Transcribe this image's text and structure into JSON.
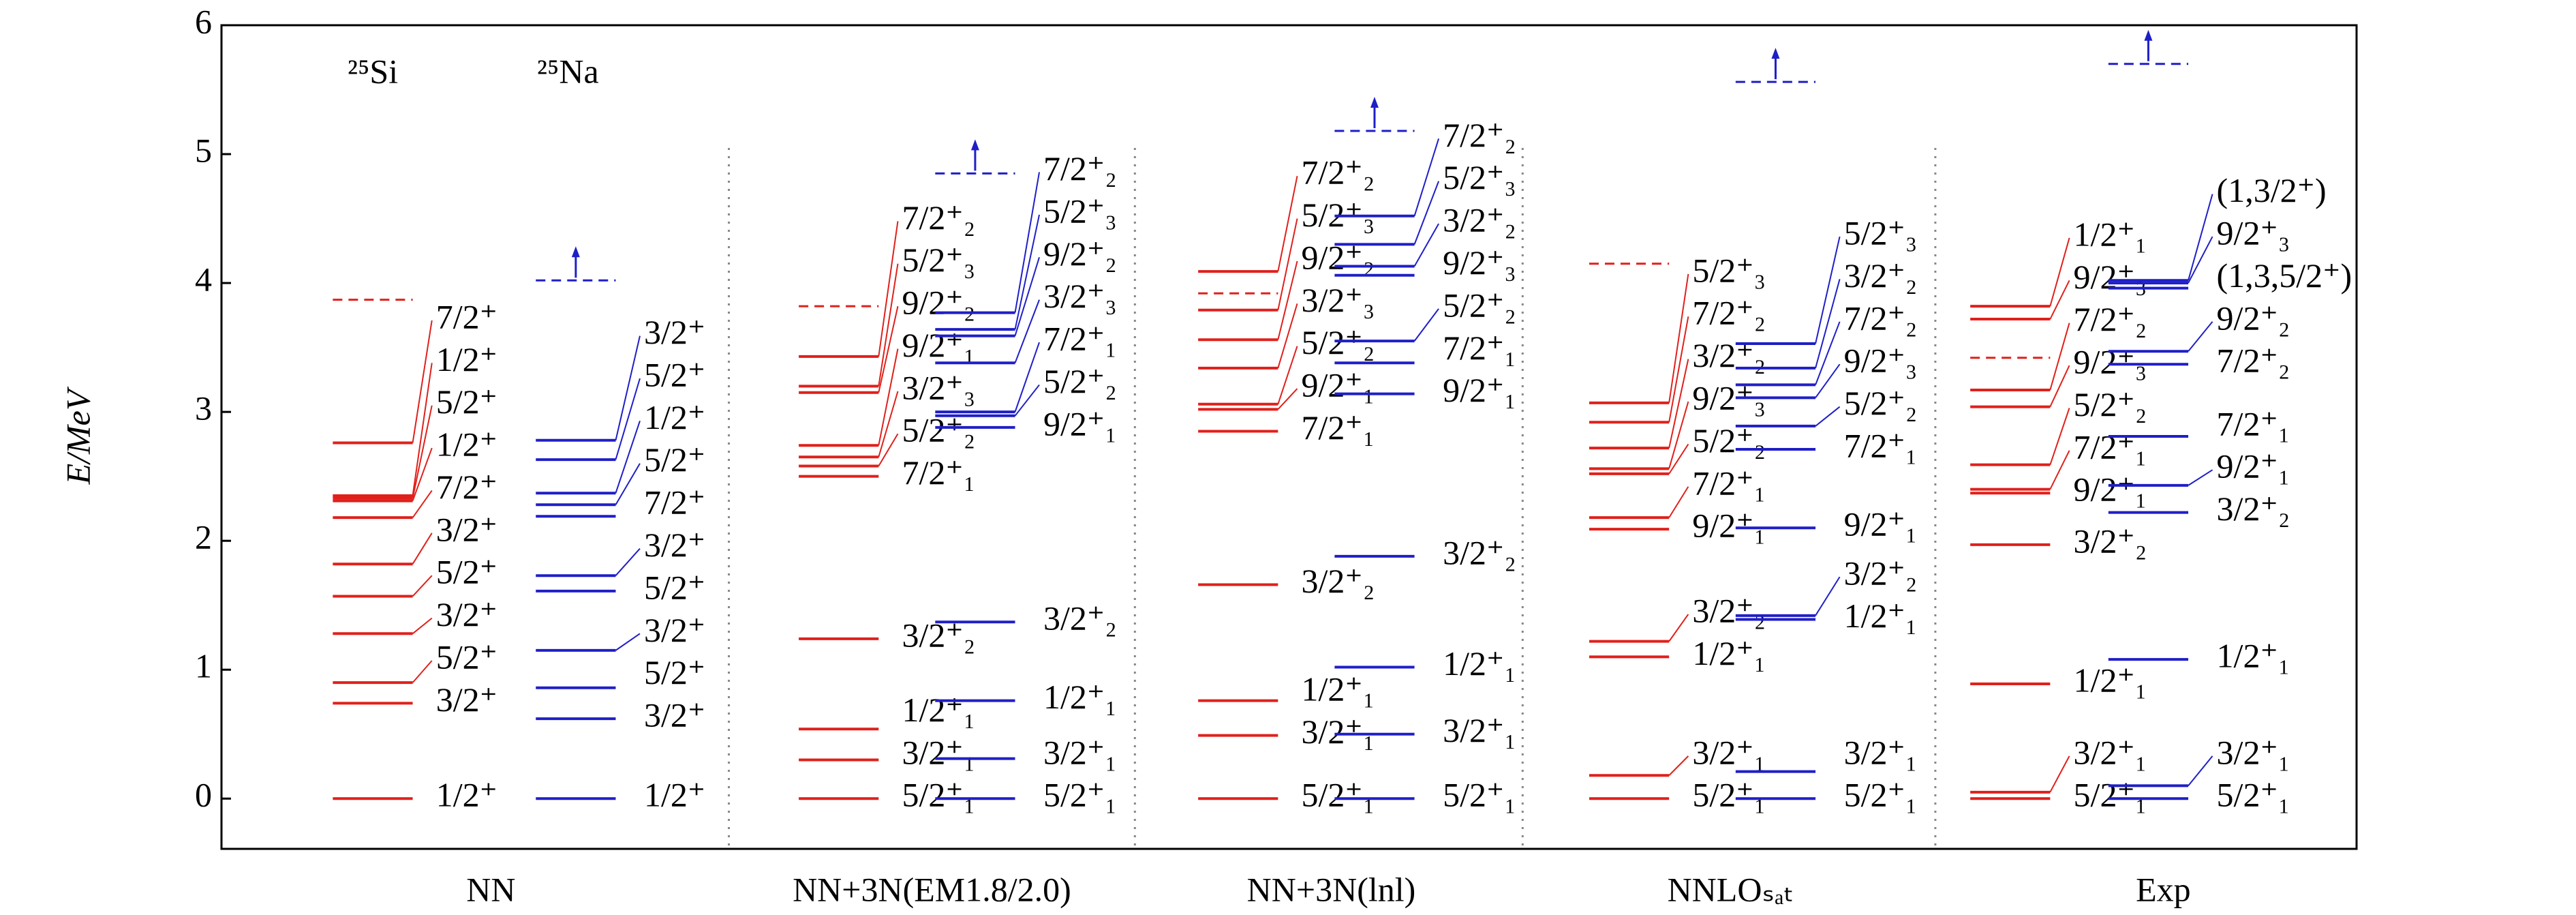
{
  "chart_data": {
    "type": "level",
    "ylabel": "E/MeV",
    "ylim": [
      -0.39,
      6
    ],
    "yticks": [
      0,
      1,
      2,
      3,
      4,
      5,
      6
    ],
    "species": [
      "²⁵Si",
      "²⁵Na"
    ],
    "groups": [
      {
        "name": "NN",
        "columns": [
          {
            "color": "#e0201b",
            "threshold": 3.87,
            "arrow": false,
            "levels": [
              0,
              0.74,
              0.9,
              1.28,
              1.57,
              1.82,
              2.18,
              2.31,
              2.33,
              2.35,
              2.76
            ],
            "labels": [
              "1/2⁺",
              "3/2⁺",
              "5/2⁺",
              "3/2⁺",
              "5/2⁺",
              "3/2⁺",
              "7/2⁺",
              "1/2⁺",
              "5/2⁺",
              "1/2⁺",
              "7/2⁺"
            ]
          },
          {
            "color": "#1f1fc8",
            "threshold": 4.02,
            "arrow": true,
            "levels": [
              0,
              0.62,
              0.86,
              1.15,
              1.61,
              1.73,
              2.19,
              2.28,
              2.37,
              2.63,
              2.78
            ],
            "labels": [
              "1/2⁺",
              "3/2⁺",
              "5/2⁺",
              "3/2⁺",
              "5/2⁺",
              "3/2⁺",
              "7/2⁺",
              "5/2⁺",
              "1/2⁺",
              "5/2⁺",
              "3/2⁺"
            ]
          }
        ]
      },
      {
        "name": "NN+3N(EM1.8/2.0)",
        "columns": [
          {
            "color": "#e0201b",
            "threshold": 3.82,
            "arrow": false,
            "levels": [
              0,
              0.3,
              0.54,
              1.24,
              2.5,
              2.58,
              2.65,
              2.74,
              3.15,
              3.2,
              3.43
            ],
            "labels": [
              "5/2⁺₁",
              "3/2⁺₁",
              "1/2⁺₁",
              "3/2⁺₂",
              "7/2⁺₁",
              "5/2⁺₂",
              "3/2⁺₃",
              "9/2⁺₁",
              "9/2⁺₂",
              "5/2⁺₃",
              "7/2⁺₂"
            ]
          },
          {
            "color": "#1f1fc8",
            "threshold": 4.85,
            "arrow": true,
            "levels": [
              0,
              0.31,
              0.76,
              1.37,
              2.88,
              2.97,
              3.0,
              3.38,
              3.59,
              3.64,
              3.77
            ],
            "labels": [
              "5/2⁺₁",
              "3/2⁺₁",
              "1/2⁺₁",
              "3/2⁺₂",
              "9/2⁺₁",
              "5/2⁺₂",
              "7/2⁺₁",
              "3/2⁺₃",
              "9/2⁺₂",
              "5/2⁺₃",
              "7/2⁺₂"
            ]
          }
        ]
      },
      {
        "name": "NN+3N(lnl)",
        "columns": [
          {
            "color": "#e0201b",
            "threshold": 3.92,
            "arrow": false,
            "levels": [
              0,
              0.49,
              0.76,
              1.66,
              2.85,
              3.02,
              3.06,
              3.34,
              3.56,
              3.79,
              4.09
            ],
            "labels": [
              "5/2⁺₁",
              "3/2⁺₁",
              "1/2⁺₁",
              "3/2⁺₂",
              "7/2⁺₁",
              "9/2⁺₁",
              "5/2⁺₂",
              "3/2⁺₃",
              "9/2⁺₂",
              "5/2⁺₃",
              "7/2⁺₂"
            ]
          },
          {
            "color": "#1f1fc8",
            "threshold": 5.18,
            "arrow": true,
            "levels": [
              0,
              0.5,
              1.02,
              1.88,
              3.14,
              3.38,
              3.55,
              4.06,
              4.13,
              4.3,
              4.52
            ],
            "labels": [
              "5/2⁺₁",
              "3/2⁺₁",
              "1/2⁺₁",
              "3/2⁺₂",
              "9/2⁺₁",
              "7/2⁺₁",
              "5/2⁺₂",
              "9/2⁺₃",
              "3/2⁺₂",
              "5/2⁺₃",
              "7/2⁺₂"
            ]
          }
        ]
      },
      {
        "name": "NNLOₛₐₜ",
        "columns": [
          {
            "color": "#e0201b",
            "threshold": 4.15,
            "arrow": false,
            "levels": [
              0,
              0.18,
              1.1,
              1.22,
              2.09,
              2.18,
              2.52,
              2.56,
              2.72,
              2.92,
              3.07
            ],
            "labels": [
              "5/2⁺₁",
              "3/2⁺₁",
              "1/2⁺₁",
              "3/2⁺₂",
              "9/2⁺₁",
              "7/2⁺₁",
              "5/2⁺₂",
              "9/2⁺₃",
              "3/2⁺₂",
              "7/2⁺₂",
              "5/2⁺₃"
            ]
          },
          {
            "color": "#1f1fc8",
            "threshold": 5.56,
            "arrow": true,
            "levels": [
              0,
              0.21,
              1.39,
              1.42,
              2.1,
              2.71,
              2.89,
              3.11,
              3.21,
              3.34,
              3.53
            ],
            "labels": [
              "5/2⁺₁",
              "3/2⁺₁",
              "1/2⁺₁",
              "3/2⁺₂",
              "9/2⁺₁",
              "7/2⁺₁",
              "5/2⁺₂",
              "9/2⁺₃",
              "7/2⁺₂",
              "3/2⁺₂",
              "5/2⁺₃"
            ]
          }
        ]
      },
      {
        "name": "Exp",
        "columns": [
          {
            "color": "#e0201b",
            "threshold": 3.42,
            "arrow": false,
            "levels": [
              0,
              0.05,
              0.89,
              1.97,
              2.37,
              2.4,
              2.59,
              3.04,
              3.17,
              3.72,
              3.82
            ],
            "labels": [
              "5/2⁺₁",
              "3/2⁺₁",
              "1/2⁺₁",
              "3/2⁺₂",
              "9/2⁺₁",
              "7/2⁺₁",
              "5/2⁺₂",
              "9/2⁺₃",
              "7/2⁺₂",
              "9/2⁺₃",
              "1/2⁺₁"
            ]
          },
          {
            "color": "#1f1fc8",
            "threshold": 5.7,
            "arrow": true,
            "levels": [
              0,
              0.1,
              1.08,
              2.22,
              2.43,
              2.81,
              3.37,
              3.47,
              3.96,
              4.0,
              4.02
            ],
            "labels": [
              "5/2⁺₁",
              "3/2⁺₁",
              "1/2⁺₁",
              "3/2⁺₂",
              "9/2⁺₁",
              "7/2⁺₁",
              "7/2⁺₂",
              "9/2⁺₂",
              "(1,3,5/2⁺)",
              "9/2⁺₃",
              "(1,3/2⁺)"
            ]
          }
        ]
      }
    ]
  }
}
